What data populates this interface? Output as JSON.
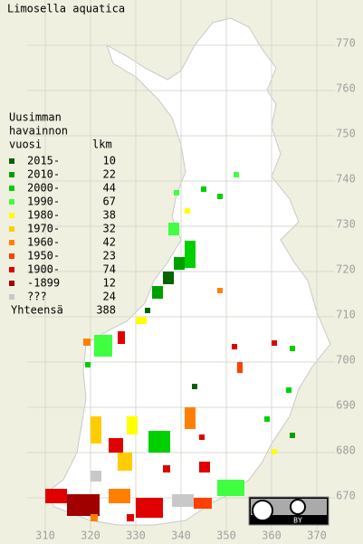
{
  "title": "Limosella aquatica",
  "legend": {
    "header": [
      "Uusimman",
      "havainnon",
      "vuosi"
    ],
    "count_header": "lkm",
    "entries": [
      {
        "label": "2015-",
        "color": "#006400",
        "count": 10
      },
      {
        "label": "2010-",
        "color": "#00a000",
        "count": 22
      },
      {
        "label": "2000-",
        "color": "#00d000",
        "count": 44
      },
      {
        "label": "1990-",
        "color": "#40ff40",
        "count": 67
      },
      {
        "label": "1980-",
        "color": "#ffff00",
        "count": 38
      },
      {
        "label": "1970-",
        "color": "#ffcc00",
        "count": 32
      },
      {
        "label": "1960-",
        "color": "#ff8000",
        "count": 42
      },
      {
        "label": "1950-",
        "color": "#ff4000",
        "count": 23
      },
      {
        "label": "1900-",
        "color": "#e00000",
        "count": 74
      },
      {
        "label": "-1899",
        "color": "#a00000",
        "count": 12
      },
      {
        "label": "???",
        "color": "#c8c8c8",
        "count": 24
      }
    ],
    "total_label": "Yhteensä",
    "total": 388
  },
  "map": {
    "xlim": [
      300,
      380
    ],
    "ylim": [
      660,
      780
    ],
    "xticks": [
      310,
      320,
      330,
      340,
      350,
      360,
      370
    ],
    "yticks": [
      670,
      680,
      690,
      700,
      710,
      720,
      730,
      740,
      750,
      760,
      770
    ]
  },
  "license": {
    "badge": "BY"
  }
}
